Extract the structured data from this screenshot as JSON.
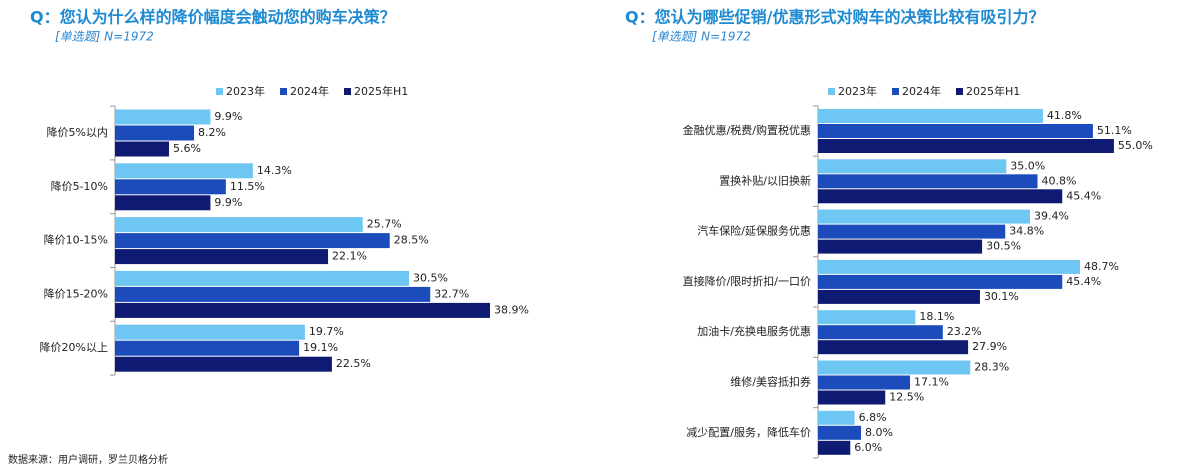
{
  "chart_data": [
    {
      "type": "bar",
      "orientation": "horizontal",
      "title": "Q：您认为什么样的降价幅度会触动您的购车决策？",
      "subtitle": "[单选题] N=1972",
      "categories": [
        "降价5%以内",
        "降价5-10%",
        "降价10-15%",
        "降价15-20%",
        "降价20%以上"
      ],
      "series": [
        {
          "name": "2023年",
          "color": "#6ec6f2",
          "values": [
            9.9,
            14.3,
            25.7,
            30.5,
            19.7
          ],
          "value_labels": [
            "9.9%",
            "14.3%",
            "25.7%",
            "30.5%",
            "19.7%"
          ]
        },
        {
          "name": "2024年",
          "color": "#1c4cbc",
          "values": [
            8.2,
            11.5,
            28.5,
            32.7,
            19.1
          ],
          "value_labels": [
            "8.2%",
            "11.5%",
            "28.5%",
            "32.7%",
            "19.1%"
          ]
        },
        {
          "name": "2025年H1",
          "color": "#0f1a72",
          "values": [
            5.6,
            9.9,
            22.1,
            38.9,
            22.5
          ],
          "value_labels": [
            "5.6%",
            "9.9%",
            "22.1%",
            "38.9%",
            "22.5%"
          ]
        }
      ],
      "legend": "top"
    },
    {
      "type": "bar",
      "orientation": "horizontal",
      "title": "Q：您认为哪些促销/优惠形式对购车的决策比较有吸引力？",
      "subtitle": "[单选题] N=1972",
      "categories": [
        "金融优惠/税费/购置税优惠",
        "置换补贴/以旧换新",
        "汽车保险/延保服务优惠",
        "直接降价/限时折扣/一口价",
        "加油卡/充换电服务优惠",
        "维修/美容抵扣券",
        "减少配置/服务，降低车价"
      ],
      "series": [
        {
          "name": "2023年",
          "color": "#6ec6f2",
          "values": [
            41.8,
            35.0,
            39.4,
            48.7,
            18.1,
            28.3,
            6.8
          ],
          "value_labels": [
            "41.8%",
            "35.0%",
            "39.4%",
            "48.7%",
            "18.1%",
            "28.3%",
            "6.8%"
          ]
        },
        {
          "name": "2024年",
          "color": "#1c4cbc",
          "values": [
            51.1,
            40.8,
            34.8,
            45.4,
            23.2,
            17.1,
            8.0
          ],
          "value_labels": [
            "51.1%",
            "40.8%",
            "34.8%",
            "45.4%",
            "23.2%",
            "17.1%",
            "8.0%"
          ]
        },
        {
          "name": "2025年H1",
          "color": "#0f1a72",
          "values": [
            55.0,
            45.4,
            30.5,
            30.1,
            27.9,
            12.5,
            6.0
          ],
          "value_labels": [
            "55.0%",
            "45.4%",
            "30.5%",
            "30.1%",
            "27.9%",
            "12.5%",
            "6.0%"
          ]
        }
      ],
      "legend": "top"
    }
  ],
  "source": "数据来源：用户调研，罗兰贝格分析"
}
